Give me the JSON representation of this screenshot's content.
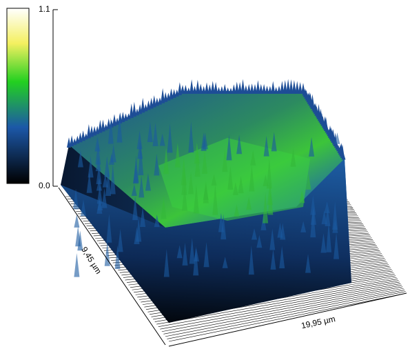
{
  "colorbar": {
    "max_label": "1.1",
    "min_label": "0.0"
  },
  "axes": {
    "x_label": "19,95 µm",
    "y_label": "9,45 µm"
  }
}
